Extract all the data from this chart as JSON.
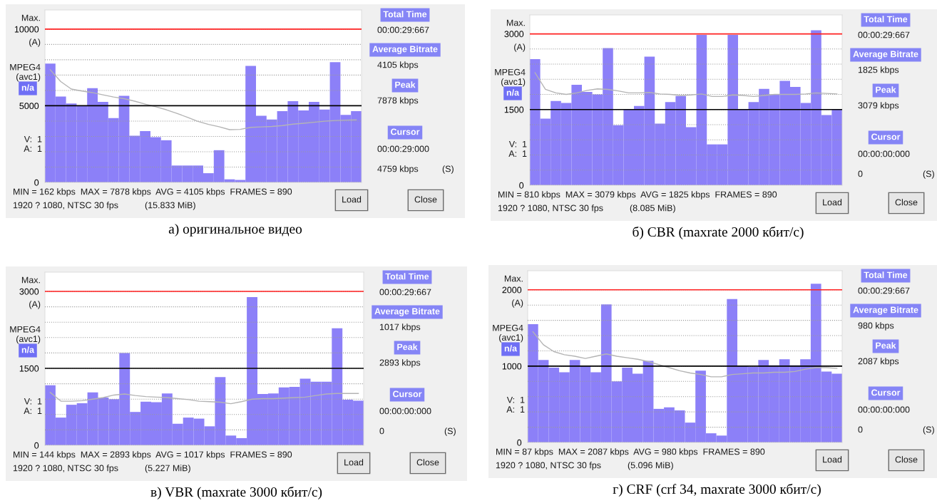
{
  "chart_data": [
    {
      "type": "bar",
      "title": "а) оригинальное видео",
      "categories": [
        null,
        null,
        null,
        null,
        null,
        null,
        null,
        null,
        null,
        null,
        null,
        null,
        null,
        null,
        null,
        null,
        null,
        null,
        null,
        null,
        null,
        null,
        null,
        null,
        null,
        null,
        null,
        null,
        null,
        null
      ],
      "series": [
        {
          "color": "#8c80f8",
          "values": [
            7750,
            5600,
            5150,
            5000,
            6150,
            5250,
            4200,
            5650,
            3050,
            3350,
            2950,
            2750,
            1100,
            1100,
            1100,
            600,
            2100,
            200,
            160,
            7600,
            4350,
            4100,
            4650,
            5300,
            4700,
            5250,
            4750,
            7850,
            4400,
            4650
          ]
        },
        {
          "type": "line",
          "color": "#b4b4b4",
          "values": [
            7350,
            6580,
            6090,
            5960,
            5860,
            5710,
            5570,
            5460,
            5300,
            5110,
            4930,
            4740,
            4500,
            4250,
            3980,
            3780,
            3630,
            3440,
            3460,
            3590,
            3620,
            3650,
            3710,
            3800,
            3860,
            3920,
            3990,
            4040,
            4060,
            4080
          ]
        }
      ],
      "ylim": [
        0,
        11250
      ],
      "yticks": [
        0,
        {
          "value": 1000,
          "label": null
        },
        {
          "value": 2000,
          "label": null
        },
        {
          "value": 3000,
          "label": null
        },
        {
          "value": 4000,
          "label": null
        },
        5000,
        {
          "value": 6000,
          "label": null
        },
        {
          "value": 7000,
          "label": null
        },
        {
          "value": 8000,
          "label": null
        },
        {
          "value": 9000,
          "label": null
        },
        10000
      ],
      "grid": "y",
      "ref_lines": [
        {
          "axis": "y",
          "value": 10000,
          "color": "#ff2020"
        },
        {
          "axis": "y",
          "value": 5000,
          "color": "#000000"
        }
      ],
      "annotations": [
        "Max.",
        "(A)",
        "MPEG4\n(avc1)",
        "n/a",
        "V:  1\nA:  1",
        "Total Time",
        "00:00:29:667",
        "Average Bitrate",
        "4105 kbps",
        "Peak",
        "7878 kbps",
        "Cursor",
        "00:00:29:000",
        "4759 kbps",
        "(S)",
        "MIN = 162 kbps  MAX = 7878 kbps  AVG = 4105 kbps  FRAMES = 890",
        "1920 ? 1080, NTSC 30 fps",
        "(15.833 MiB)",
        "Load",
        "Close"
      ]
    },
    {
      "type": "bar",
      "title": "б) CBR (maxrate 2000 кбит/с)",
      "categories": [
        null,
        null,
        null,
        null,
        null,
        null,
        null,
        null,
        null,
        null,
        null,
        null,
        null,
        null,
        null,
        null,
        null,
        null,
        null,
        null,
        null,
        null,
        null,
        null,
        null,
        null,
        null,
        null,
        null,
        null
      ],
      "series": [
        {
          "color": "#8c80f8",
          "values": [
            2500,
            1320,
            1670,
            1630,
            1990,
            1850,
            1800,
            2720,
            1190,
            1500,
            1570,
            2550,
            1220,
            1650,
            1770,
            1150,
            2980,
            810,
            810,
            2980,
            1500,
            1650,
            1910,
            1800,
            2070,
            1950,
            1630,
            3070,
            1390,
            1500
          ]
        },
        {
          "type": "line",
          "color": "#b4b4b4",
          "values": [
            2230,
            1900,
            1830,
            1800,
            1830,
            1880,
            1910,
            1900,
            1870,
            1830,
            1830,
            1840,
            1810,
            1800,
            1780,
            1790,
            1810,
            1760,
            1760,
            1790,
            1780,
            1760,
            1780,
            1800,
            1800,
            1800,
            1810,
            1830,
            1820,
            1810
          ]
        }
      ],
      "ylim": [
        0,
        3375
      ],
      "yticks": [
        0,
        {
          "value": 300,
          "label": null
        },
        {
          "value": 600,
          "label": null
        },
        {
          "value": 900,
          "label": null
        },
        {
          "value": 1200,
          "label": null
        },
        1500,
        {
          "value": 1800,
          "label": null
        },
        {
          "value": 2100,
          "label": null
        },
        {
          "value": 2400,
          "label": null
        },
        {
          "value": 2700,
          "label": null
        },
        3000
      ],
      "grid": "y",
      "ref_lines": [
        {
          "axis": "y",
          "value": 3000,
          "color": "#ff2020"
        },
        {
          "axis": "y",
          "value": 1500,
          "color": "#000000"
        }
      ],
      "annotations": [
        "Max.",
        "(A)",
        "MPEG4\n(avc1)",
        "n/a",
        "V:  1\nA:  1",
        "Total Time",
        "00:00:29:667",
        "Average Bitrate",
        "1825 kbps",
        "Peak",
        "3079 kbps",
        "Cursor",
        "00:00:00:000",
        "0",
        "(S)",
        "MIN = 810 kbps  MAX = 3079 kbps  AVG = 1825 kbps  FRAMES = 890",
        "1920 ? 1080, NTSC 30 fps",
        "(8.085 MiB)",
        "Load",
        "Close"
      ]
    },
    {
      "type": "bar",
      "title": "в) VBR (maxrate 3000 кбит/с)",
      "categories": [
        null,
        null,
        null,
        null,
        null,
        null,
        null,
        null,
        null,
        null,
        null,
        null,
        null,
        null,
        null,
        null,
        null,
        null,
        null,
        null,
        null,
        null,
        null,
        null,
        null,
        null,
        null,
        null,
        null,
        null
      ],
      "series": [
        {
          "color": "#8c80f8",
          "values": [
            1170,
            540,
            790,
            820,
            1030,
            930,
            900,
            1800,
            650,
            850,
            840,
            1010,
            420,
            540,
            520,
            370,
            1330,
            190,
            140,
            2890,
            1000,
            1010,
            1130,
            1140,
            1300,
            1240,
            1240,
            2280,
            890,
            870
          ]
        },
        {
          "type": "line",
          "color": "#b4b4b4",
          "values": [
            1030,
            860,
            860,
            870,
            900,
            930,
            980,
            1000,
            970,
            950,
            940,
            930,
            910,
            890,
            860,
            850,
            840,
            810,
            850,
            900,
            910,
            910,
            920,
            930,
            940,
            970,
            1000,
            1010,
            1010,
            1010
          ]
        }
      ],
      "ylim": [
        0,
        3375
      ],
      "yticks": [
        0,
        {
          "value": 300,
          "label": null
        },
        {
          "value": 600,
          "label": null
        },
        {
          "value": 900,
          "label": null
        },
        {
          "value": 1200,
          "label": null
        },
        1500,
        {
          "value": 1800,
          "label": null
        },
        {
          "value": 2100,
          "label": null
        },
        {
          "value": 2400,
          "label": null
        },
        {
          "value": 2700,
          "label": null
        },
        3000
      ],
      "grid": "y",
      "ref_lines": [
        {
          "axis": "y",
          "value": 3000,
          "color": "#ff2020"
        },
        {
          "axis": "y",
          "value": 1500,
          "color": "#000000"
        }
      ],
      "annotations": [
        "Max.",
        "(A)",
        "MPEG4\n(avc1)",
        "n/a",
        "V:  1\nA:  1",
        "Total Time",
        "00:00:29:667",
        "Average Bitrate",
        "1017 kbps",
        "Peak",
        "2893 kbps",
        "Cursor",
        "00:00:00:000",
        "0",
        "(S)",
        "MIN = 144 kbps  MAX = 2893 kbps  AVG = 1017 kbps  FRAMES = 890",
        "1920 ? 1080, NTSC 30 fps",
        "(5.227 MiB)",
        "Load",
        "Close"
      ]
    },
    {
      "type": "bar",
      "title": "г) CRF (crf 34, maxrate 3000 кбит/с)",
      "categories": [
        null,
        null,
        null,
        null,
        null,
        null,
        null,
        null,
        null,
        null,
        null,
        null,
        null,
        null,
        null,
        null,
        null,
        null,
        null,
        null,
        null,
        null,
        null,
        null,
        null,
        null,
        null,
        null,
        null,
        null
      ],
      "series": [
        {
          "color": "#8c80f8",
          "values": [
            1550,
            1080,
            980,
            920,
            1080,
            1000,
            920,
            1810,
            800,
            980,
            900,
            1070,
            440,
            460,
            420,
            260,
            940,
            120,
            90,
            1880,
            1000,
            990,
            1080,
            1010,
            1090,
            1010,
            1090,
            2080,
            930,
            900
          ]
        },
        {
          "type": "line",
          "color": "#b4b4b4",
          "values": [
            1450,
            1280,
            1190,
            1150,
            1130,
            1100,
            1130,
            1160,
            1130,
            1110,
            1090,
            1060,
            1020,
            980,
            940,
            910,
            890,
            860,
            860,
            890,
            900,
            910,
            910,
            920,
            920,
            930,
            960,
            980,
            980,
            970
          ]
        }
      ],
      "ylim": [
        0,
        2250
      ],
      "yticks": [
        0,
        {
          "value": 200,
          "label": null
        },
        {
          "value": 400,
          "label": null
        },
        {
          "value": 600,
          "label": null
        },
        {
          "value": 800,
          "label": null
        },
        1000,
        {
          "value": 1200,
          "label": null
        },
        {
          "value": 1400,
          "label": null
        },
        {
          "value": 1600,
          "label": null
        },
        {
          "value": 1800,
          "label": null
        },
        2000
      ],
      "grid": "y",
      "ref_lines": [
        {
          "axis": "y",
          "value": 2000,
          "color": "#ff2020"
        },
        {
          "axis": "y",
          "value": 1000,
          "color": "#000000"
        }
      ],
      "annotations": [
        "Max.",
        "(A)",
        "MPEG4\n(avc1)",
        "n/a",
        "V:  1\nA:  1",
        "Total Time",
        "00:00:29:667",
        "Average Bitrate",
        "980 kbps",
        "Peak",
        "2087 kbps",
        "Cursor",
        "00:00:00:000",
        "0",
        "(S)",
        "MIN = 87 kbps  MAX = 2087 kbps  AVG = 980 kbps  FRAMES = 890",
        "1920 ? 1080, NTSC 30 fps",
        "(5.096 MiB)",
        "Load",
        "Close"
      ]
    }
  ]
}
